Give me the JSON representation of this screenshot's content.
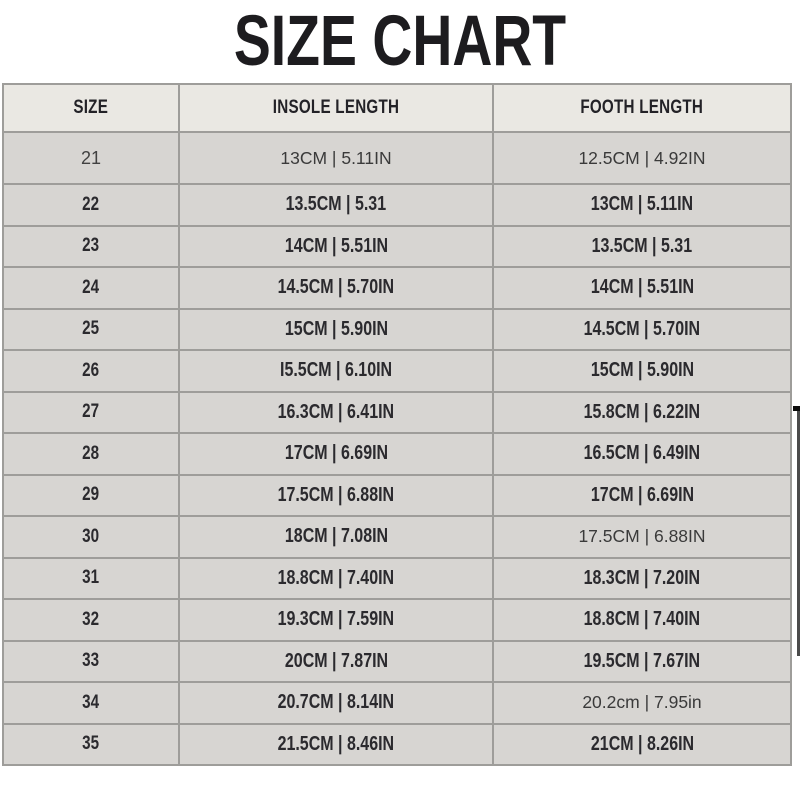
{
  "page": {
    "title": "SIZE CHART"
  },
  "colors": {
    "page_bg": "#ffffff",
    "title_text": "#1d1c1f",
    "header_bg": "#eae8e3",
    "row_bg": "#d7d5d2",
    "border": "#9e9d9a",
    "cell_text": "#2b2a2e",
    "scrollbar": "#4b4b4b"
  },
  "chart_data": {
    "type": "table",
    "title": "SIZE CHART",
    "columns": [
      "SIZE",
      "INSOLE LENGTH",
      "FOOTH LENGTH"
    ],
    "rows": [
      {
        "size": "21",
        "insole": "13CM | 5.11IN",
        "footh": "12.5CM | 4.92IN",
        "variant": "regular"
      },
      {
        "size": "22",
        "insole": "13.5CM | 5.31",
        "footh": "13CM | 5.11IN"
      },
      {
        "size": "23",
        "insole": "14CM | 5.51IN",
        "footh": "13.5CM | 5.31"
      },
      {
        "size": "24",
        "insole": "14.5CM | 5.70IN",
        "footh": "14CM | 5.51IN"
      },
      {
        "size": "25",
        "insole": "15CM | 5.90IN",
        "footh": "14.5CM | 5.70IN"
      },
      {
        "size": "26",
        "insole": "I5.5CM | 6.10IN",
        "footh": "15CM | 5.90IN"
      },
      {
        "size": "27",
        "insole": "16.3CM | 6.41IN",
        "footh": "15.8CM | 6.22IN"
      },
      {
        "size": "28",
        "insole": "17CM | 6.69IN",
        "footh": "16.5CM | 6.49IN"
      },
      {
        "size": "29",
        "insole": "17.5CM | 6.88IN",
        "footh": "17CM | 6.69IN"
      },
      {
        "size": "30",
        "insole": "18CM | 7.08IN",
        "footh": "17.5CM | 6.88IN",
        "footh_variant": "regular"
      },
      {
        "size": "31",
        "insole": "18.8CM | 7.40IN",
        "footh": "18.3CM | 7.20IN"
      },
      {
        "size": "32",
        "insole": "19.3CM | 7.59IN",
        "footh": "18.8CM | 7.40IN"
      },
      {
        "size": "33",
        "insole": "20CM | 7.87IN",
        "footh": "19.5CM | 7.67IN"
      },
      {
        "size": "34",
        "insole": "20.7CM | 8.14IN",
        "footh": "20.2cm | 7.95in",
        "footh_variant": "regular"
      },
      {
        "size": "35",
        "insole": "21.5CM | 8.46IN",
        "footh": "21CM | 8.26IN"
      }
    ]
  }
}
